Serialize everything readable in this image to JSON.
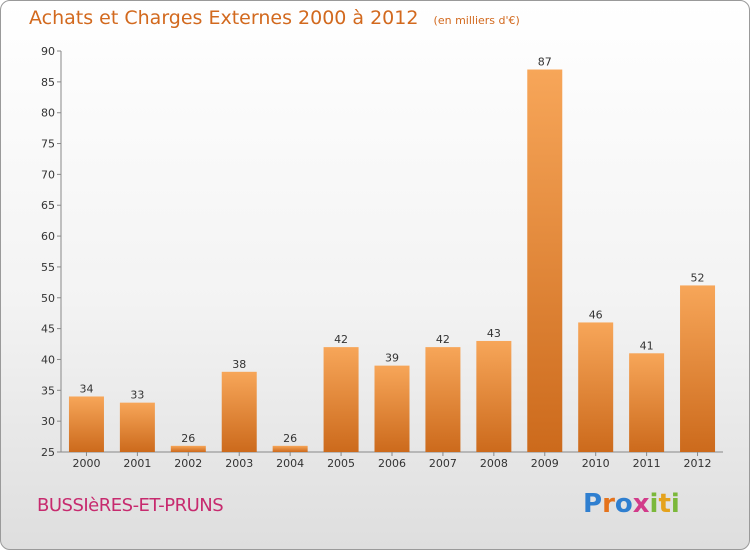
{
  "title": "Achats et Charges Externes 2000 à 2012",
  "unit": "(en milliers d'€)",
  "commune": "BUSSIèRES-ET-PRUNS",
  "logo": "Proxiti",
  "colors": {
    "title": "#d2691e",
    "bar_top": "#f7a659",
    "bar_bottom": "#cc6a1c",
    "commune": "#c72a6e"
  },
  "chart_data": {
    "type": "bar",
    "title": "Achats et Charges Externes 2000 à 2012",
    "subtitle": "(en milliers d'€)",
    "categories": [
      "2000",
      "2001",
      "2002",
      "2003",
      "2004",
      "2005",
      "2006",
      "2007",
      "2008",
      "2009",
      "2010",
      "2011",
      "2012"
    ],
    "values": [
      34,
      33,
      26,
      38,
      26,
      42,
      39,
      42,
      43,
      87,
      46,
      41,
      52
    ],
    "ylim": [
      25,
      90
    ],
    "yticks": [
      25,
      30,
      35,
      40,
      45,
      50,
      55,
      60,
      65,
      70,
      75,
      80,
      85,
      90
    ],
    "grid": false,
    "data_labels": true
  }
}
